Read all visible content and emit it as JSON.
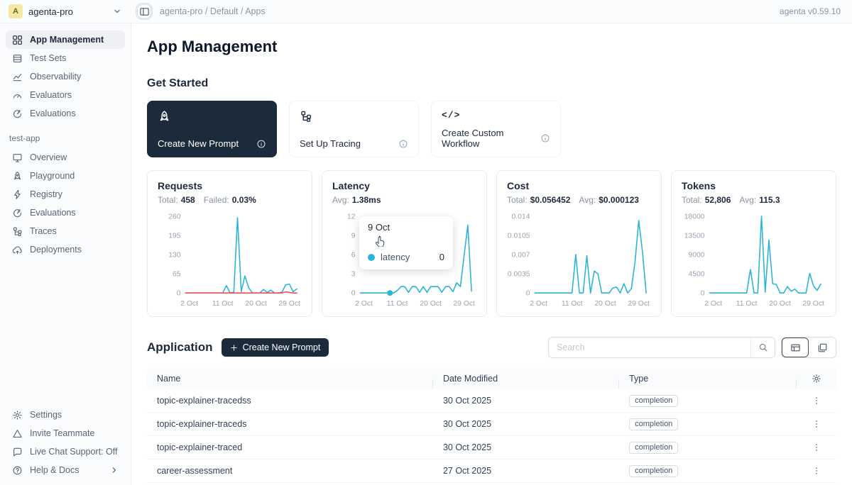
{
  "topbar": {
    "workspace": "agenta-pro",
    "workspace_initial": "A",
    "breadcrumb": "agenta-pro / Default / Apps",
    "version": "agenta v0.59.10"
  },
  "sidebar": {
    "items": [
      {
        "label": "App Management",
        "icon": "grid-icon"
      },
      {
        "label": "Test Sets",
        "icon": "test-sets-icon"
      },
      {
        "label": "Observability",
        "icon": "line-chart-icon"
      },
      {
        "label": "Evaluators",
        "icon": "gauge-icon"
      },
      {
        "label": "Evaluations",
        "icon": "gauge-arrow-icon"
      }
    ],
    "group_label": "test-app",
    "app_items": [
      {
        "label": "Overview",
        "icon": "monitor-icon"
      },
      {
        "label": "Playground",
        "icon": "rocket-icon"
      },
      {
        "label": "Registry",
        "icon": "lightning-icon"
      },
      {
        "label": "Evaluations",
        "icon": "gauge-arrow-icon"
      },
      {
        "label": "Traces",
        "icon": "tree-icon"
      },
      {
        "label": "Deployments",
        "icon": "cloud-icon"
      }
    ],
    "bottom_items": [
      {
        "label": "Settings",
        "icon": "gear-icon"
      },
      {
        "label": "Invite Teammate",
        "icon": "triangle-icon"
      },
      {
        "label": "Live Chat Support: Off",
        "icon": "chat-icon"
      },
      {
        "label": "Help & Docs",
        "icon": "question-icon"
      }
    ]
  },
  "page": {
    "title": "App Management",
    "get_started_title": "Get Started",
    "cards": [
      {
        "label": "Create New Prompt",
        "icon": "rocket-icon"
      },
      {
        "label": "Set Up Tracing",
        "icon": "tree-icon"
      },
      {
        "label": "Create Custom Workflow",
        "icon": "code-icon",
        "glyph": "</>"
      }
    ]
  },
  "tooltip": {
    "title": "9 Oct",
    "series": "latency",
    "value": "0"
  },
  "application": {
    "title": "Application",
    "create_button": "Create New Prompt",
    "search_placeholder": "Search",
    "columns": [
      "Name",
      "Date Modified",
      "Type"
    ],
    "rows": [
      {
        "name": "topic-explainer-tracedss",
        "date": "30 Oct 2025",
        "type": "completion"
      },
      {
        "name": "topic-explainer-traceds",
        "date": "30 Oct 2025",
        "type": "completion"
      },
      {
        "name": "topic-explainer-traced",
        "date": "30 Oct 2025",
        "type": "completion"
      },
      {
        "name": "career-assessment",
        "date": "27 Oct 2025",
        "type": "completion"
      }
    ]
  },
  "colors": {
    "accent": "#1b2b3b",
    "line": "#2ab5d8",
    "failed": "#ee5050"
  },
  "chart_data": [
    {
      "type": "line",
      "title": "Requests",
      "stats": [
        {
          "label": "Total:",
          "value": "458"
        },
        {
          "label": "Failed:",
          "value": "0.03%"
        }
      ],
      "ylim": [
        0,
        260
      ],
      "ymax": 260,
      "y_ticks": [
        0,
        65,
        130,
        195,
        260
      ],
      "x_tick_labels": [
        "2 Oct",
        "11 Oct",
        "20 Oct",
        "29 Oct"
      ],
      "x_tick_days": [
        2,
        11,
        20,
        29
      ],
      "x_range_days": [
        1,
        31
      ],
      "grid": false,
      "series": [
        {
          "name": "requests",
          "color": "#2ab5d8",
          "values": [
            0,
            0,
            0,
            0,
            0,
            0,
            0,
            0,
            0,
            0,
            0,
            25,
            0,
            3,
            255,
            5,
            58,
            18,
            0,
            0,
            0,
            12,
            2,
            10,
            0,
            0,
            3,
            28,
            30,
            4,
            14
          ]
        },
        {
          "name": "failed",
          "color": "#ee5050",
          "values": [
            0,
            0,
            0,
            0,
            0,
            0,
            0,
            0,
            0,
            0,
            0,
            0,
            0,
            0,
            0,
            0,
            0,
            0,
            0,
            0,
            0,
            0,
            0,
            0,
            0,
            0,
            0,
            4,
            2,
            0,
            0
          ]
        }
      ]
    },
    {
      "type": "line",
      "title": "Latency",
      "stats": [
        {
          "label": "Avg:",
          "value": "1.38ms"
        }
      ],
      "ylim": [
        0,
        12
      ],
      "ymax": 12,
      "y_ticks": [
        0,
        3,
        6,
        9,
        12
      ],
      "x_tick_labels": [
        "2 Oct",
        "11 Oct",
        "20 Oct",
        "29 Oct"
      ],
      "x_tick_days": [
        2,
        11,
        20,
        29
      ],
      "x_range_days": [
        1,
        31
      ],
      "grid": false,
      "marker": {
        "day": 9,
        "value": 0,
        "color": "#2ab5d8"
      },
      "series": [
        {
          "name": "latency",
          "color": "#2ab5d8",
          "values": [
            0,
            0,
            0,
            0,
            0,
            0,
            0,
            0,
            0,
            0,
            0.4,
            1,
            1,
            0.1,
            1,
            1,
            0.1,
            1,
            0.1,
            1,
            1,
            1,
            0.1,
            1,
            1,
            0.2,
            1.6,
            1,
            5.8,
            10.6,
            0.3
          ]
        }
      ]
    },
    {
      "type": "line",
      "title": "Cost",
      "stats": [
        {
          "label": "Total:",
          "value": "$0.056452"
        },
        {
          "label": "Avg:",
          "value": "$0.000123"
        }
      ],
      "ylim": [
        0,
        0.014
      ],
      "ymax": 0.014,
      "y_ticks": [
        0,
        0.0035,
        0.007,
        0.0105,
        0.014
      ],
      "x_tick_labels": [
        "2 Oct",
        "11 Oct",
        "20 Oct",
        "29 Oct"
      ],
      "x_tick_days": [
        2,
        11,
        20,
        29
      ],
      "x_range_days": [
        1,
        31
      ],
      "grid": false,
      "series": [
        {
          "name": "cost",
          "color": "#2ab5d8",
          "values": [
            0,
            0,
            0,
            0,
            0,
            0,
            0,
            0,
            0,
            0,
            0,
            0.007,
            0,
            0,
            0.0068,
            0,
            0.004,
            0.0035,
            0,
            0,
            0,
            0.0009,
            0.0011,
            0,
            0.0017,
            0,
            0.0008,
            0.0057,
            0.0132,
            0.0075,
            0
          ]
        }
      ]
    },
    {
      "type": "line",
      "title": "Tokens",
      "stats": [
        {
          "label": "Total:",
          "value": "52,806"
        },
        {
          "label": "Avg:",
          "value": "115.3"
        }
      ],
      "ylim": [
        0,
        18000
      ],
      "ymax": 18000,
      "y_ticks": [
        0,
        4500,
        9000,
        13500,
        18000
      ],
      "x_tick_labels": [
        "2 Oct",
        "11 Oct",
        "20 Oct",
        "29 Oct"
      ],
      "x_tick_days": [
        2,
        11,
        20,
        29
      ],
      "x_range_days": [
        1,
        31
      ],
      "grid": false,
      "series": [
        {
          "name": "tokens",
          "color": "#2ab5d8",
          "values": [
            0,
            0,
            0,
            0,
            0,
            0,
            0,
            0,
            0,
            0,
            0,
            5500,
            0,
            0,
            18000,
            200,
            12400,
            2200,
            2000,
            0,
            0,
            1500,
            400,
            900,
            0,
            0,
            0,
            4600,
            1700,
            600,
            2100
          ]
        }
      ]
    }
  ]
}
